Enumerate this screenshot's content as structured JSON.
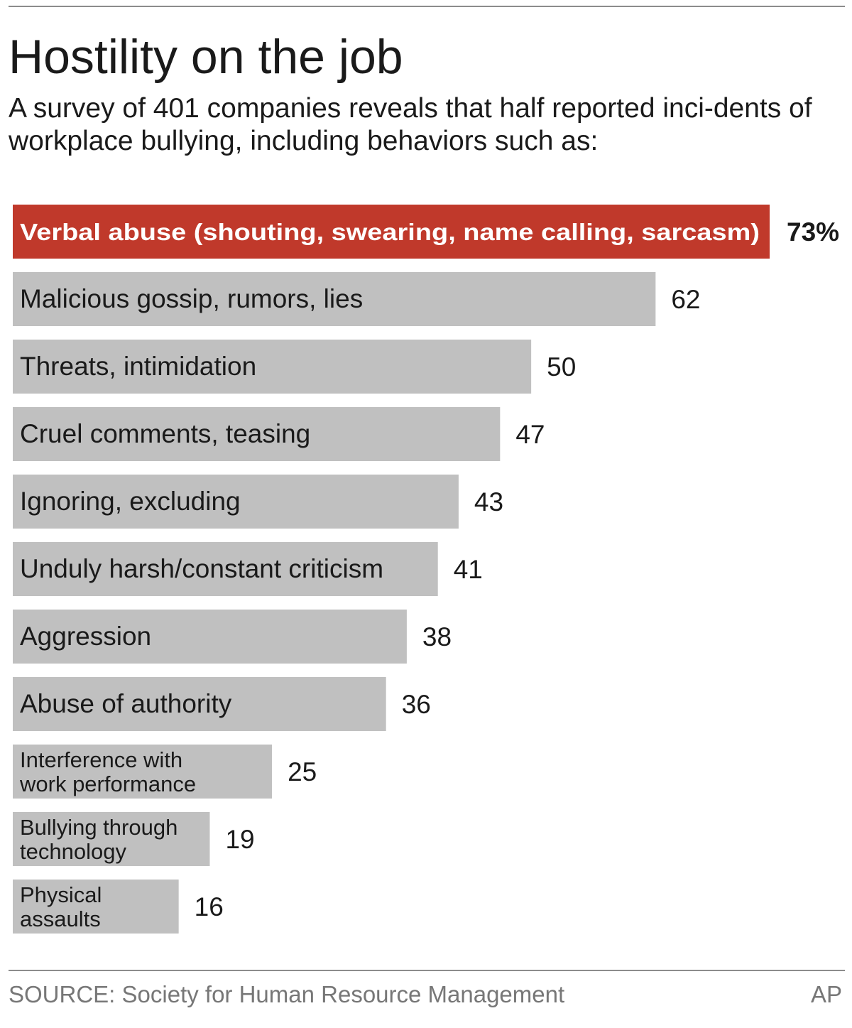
{
  "header": {
    "title": "Hostility on the job",
    "subtitle": "A survey of 401 companies reveals that half reported inci-dents of workplace bullying, including behaviors such as:"
  },
  "footer": {
    "source": "SOURCE: Society for Human Resource Management",
    "credit": "AP"
  },
  "colors": {
    "highlight_bar": "#c0392b",
    "bar": "#c0c0c0",
    "highlight_text": "#ffffff",
    "text": "#1a1a1a"
  },
  "chart_data": {
    "type": "bar",
    "orientation": "horizontal",
    "title": "Hostility on the job",
    "unit": "%",
    "xlim": [
      0,
      73
    ],
    "grid": false,
    "legend": "none",
    "categories": [
      "Verbal abuse (shouting, swearing, name calling, sarcasm)",
      "Malicious gossip, rumors, lies",
      "Threats, intimidation",
      "Cruel comments, teasing",
      "Ignoring, excluding",
      "Unduly harsh/constant criticism",
      "Aggression",
      "Abuse of authority",
      "Interference with work performance",
      "Bullying through technology",
      "Physical assaults"
    ],
    "values": [
      73,
      62,
      50,
      47,
      43,
      41,
      38,
      36,
      25,
      19,
      16
    ],
    "value_labels": [
      "73%",
      "62",
      "50",
      "47",
      "43",
      "41",
      "38",
      "36",
      "25",
      "19",
      "16"
    ],
    "highlight_index": 0
  }
}
